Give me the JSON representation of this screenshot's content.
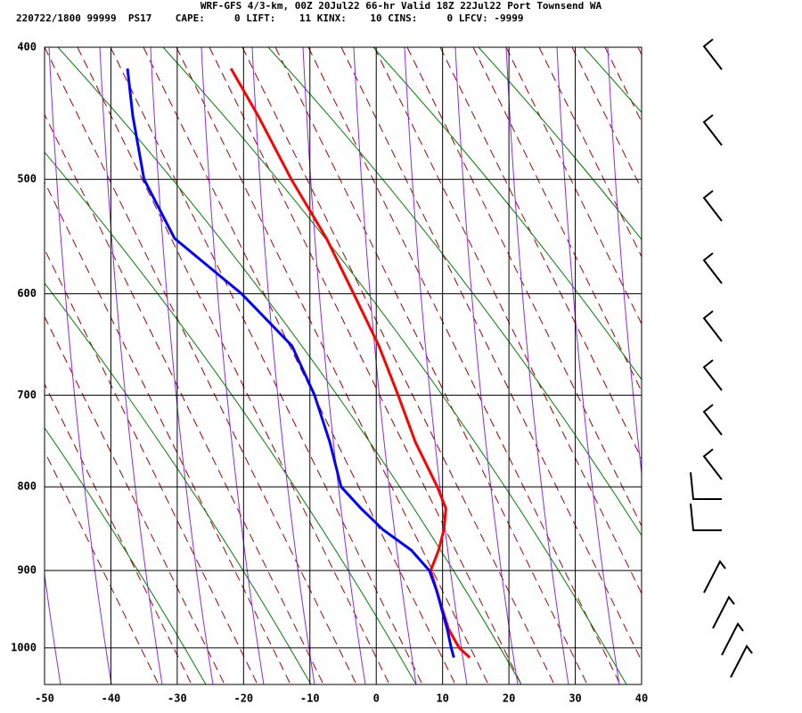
{
  "chart_data": {
    "type": "skewt",
    "title": "WRF-GFS 4/3-km, 00Z 20Jul22 66-hr Valid 18Z 22Jul22 Port Townsend WA",
    "subtitle": "220722/1800 99999  PS17    CAPE:     0 LIFT:    11 KINX:    10 CINS:     0 LFCV: -9999",
    "pressure": [
      1013,
      1000,
      975,
      950,
      925,
      900,
      875,
      850,
      825,
      800,
      750,
      700,
      650,
      600,
      550,
      500,
      450,
      415
    ],
    "series": [
      {
        "color": "#ff0000",
        "values": [
          14.1,
          12.5,
          10.9,
          10.0,
          9.1,
          8.2,
          9.4,
          10.2,
          10.5,
          9.2,
          5.9,
          3.3,
          0.4,
          -3.4,
          -7.5,
          -12.8,
          -17.8,
          -21.9
        ]
      },
      {
        "color": "#0000ff",
        "values": [
          11.7,
          11.3,
          10.7,
          9.9,
          9.1,
          8.0,
          5.3,
          1.0,
          -2.3,
          -5.3,
          -7.0,
          -9.3,
          -12.7,
          -20.3,
          -30.4,
          -35.0,
          -36.7,
          -37.5
        ]
      }
    ],
    "xlim": [
      -50,
      40
    ],
    "xticks": [
      -50,
      -40,
      -30,
      -20,
      -10,
      0,
      10,
      20,
      30,
      40
    ],
    "ylim": [
      1050,
      400
    ],
    "yticks": [
      400,
      500,
      600,
      700,
      800,
      900,
      1000
    ],
    "grid": true
  }
}
